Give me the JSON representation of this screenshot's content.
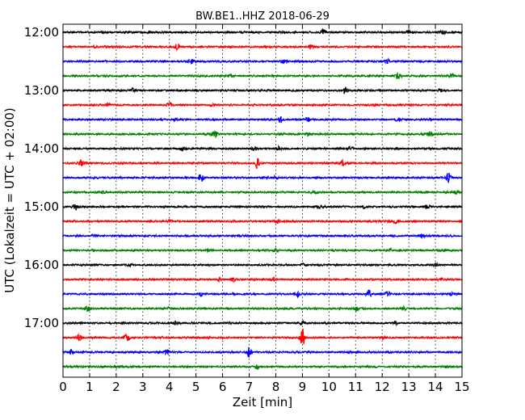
{
  "chart_data": {
    "type": "line",
    "title": "BW.BE1..HHZ 2018-06-29",
    "xlabel": "Zeit  [min]",
    "ylabel": "UTC (Lokalzeit = UTC + 02:00)",
    "xlim": [
      0,
      15
    ],
    "x_ticks": [
      "0",
      "1",
      "2",
      "3",
      "4",
      "5",
      "6",
      "7",
      "8",
      "9",
      "10",
      "11",
      "12",
      "13",
      "14",
      "15"
    ],
    "y_ticks": [
      "12:00",
      "13:00",
      "14:00",
      "15:00",
      "16:00",
      "17:00"
    ],
    "grid": "x-dotted",
    "trace_colors": [
      "#000000",
      "#ff0000",
      "#0000ff",
      "#008000"
    ],
    "series": [
      {
        "start": "12:00",
        "color": "#000000",
        "events": [
          [
            9.8,
            1.0
          ],
          [
            14.3,
            0.8
          ],
          [
            13.0,
            0.5
          ]
        ]
      },
      {
        "start": "12:15",
        "color": "#ff0000",
        "events": [
          [
            4.3,
            1.0
          ],
          [
            9.3,
            0.6
          ],
          [
            1.2,
            0.4
          ]
        ]
      },
      {
        "start": "12:30",
        "color": "#0000ff",
        "events": [
          [
            4.8,
            0.7
          ],
          [
            8.3,
            0.8
          ],
          [
            12.2,
            0.6
          ]
        ]
      },
      {
        "start": "12:45",
        "color": "#008000",
        "events": [
          [
            6.3,
            0.5
          ],
          [
            12.6,
            1.0
          ],
          [
            14.6,
            0.6
          ]
        ]
      },
      {
        "start": "13:00",
        "color": "#000000",
        "events": [
          [
            2.6,
            0.6
          ],
          [
            10.6,
            1.0
          ],
          [
            14.2,
            0.5
          ]
        ]
      },
      {
        "start": "13:15",
        "color": "#ff0000",
        "events": [
          [
            4.0,
            0.9
          ],
          [
            1.7,
            0.6
          ],
          [
            5.6,
            0.5
          ]
        ]
      },
      {
        "start": "13:30",
        "color": "#0000ff",
        "events": [
          [
            8.2,
            1.2
          ],
          [
            4.2,
            0.4
          ],
          [
            9.2,
            0.6
          ],
          [
            12.6,
            0.4
          ]
        ]
      },
      {
        "start": "13:45",
        "color": "#008000",
        "events": [
          [
            5.7,
            1.1
          ],
          [
            9.2,
            0.7
          ],
          [
            13.8,
            0.7
          ]
        ]
      },
      {
        "start": "14:00",
        "color": "#000000",
        "events": [
          [
            4.5,
            1.1
          ],
          [
            7.2,
            0.6
          ],
          [
            10.8,
            0.8
          ],
          [
            8.1,
            0.5
          ]
        ]
      },
      {
        "start": "14:15",
        "color": "#ff0000",
        "events": [
          [
            0.7,
            1.8
          ],
          [
            7.3,
            1.5
          ],
          [
            10.5,
            0.9
          ]
        ]
      },
      {
        "start": "14:30",
        "color": "#0000ff",
        "events": [
          [
            5.2,
            1.3
          ],
          [
            14.5,
            1.6
          ],
          [
            8.0,
            0.5
          ]
        ]
      },
      {
        "start": "14:45",
        "color": "#008000",
        "events": [
          [
            14.8,
            0.6
          ],
          [
            1.5,
            0.4
          ],
          [
            9.5,
            0.4
          ]
        ]
      },
      {
        "start": "15:00",
        "color": "#000000",
        "events": [
          [
            0.5,
            1.0
          ],
          [
            11.3,
            0.6
          ],
          [
            13.7,
            0.6
          ],
          [
            9.6,
            0.5
          ]
        ]
      },
      {
        "start": "15:15",
        "color": "#ff0000",
        "events": [
          [
            8.1,
            0.5
          ],
          [
            12.5,
            0.6
          ],
          [
            4.0,
            0.4
          ]
        ]
      },
      {
        "start": "15:30",
        "color": "#0000ff",
        "events": [
          [
            1.2,
            0.4
          ],
          [
            7.0,
            0.3
          ],
          [
            13.5,
            0.4
          ]
        ]
      },
      {
        "start": "15:45",
        "color": "#008000",
        "events": [
          [
            5.5,
            0.4
          ],
          [
            8.0,
            0.5
          ],
          [
            12.3,
            0.4
          ]
        ]
      },
      {
        "start": "16:00",
        "color": "#000000",
        "events": [
          [
            2.5,
            0.4
          ],
          [
            9.0,
            0.4
          ],
          [
            14.0,
            0.3
          ]
        ]
      },
      {
        "start": "16:15",
        "color": "#ff0000",
        "events": [
          [
            5.9,
            0.6
          ],
          [
            6.4,
            0.7
          ],
          [
            7.9,
            0.6
          ],
          [
            14.2,
            0.5
          ]
        ]
      },
      {
        "start": "16:30",
        "color": "#0000ff",
        "events": [
          [
            5.2,
            0.5
          ],
          [
            8.8,
            0.8
          ],
          [
            11.5,
            1.1
          ],
          [
            12.2,
            0.7
          ],
          [
            14.6,
            0.5
          ]
        ]
      },
      {
        "start": "16:45",
        "color": "#008000",
        "events": [
          [
            0.9,
            0.8
          ],
          [
            11.0,
            0.8
          ],
          [
            12.8,
            0.6
          ],
          [
            4.0,
            0.4
          ]
        ]
      },
      {
        "start": "17:00",
        "color": "#000000",
        "events": [
          [
            9.0,
            0.6
          ],
          [
            4.2,
            0.4
          ],
          [
            12.5,
            0.4
          ]
        ]
      },
      {
        "start": "17:15",
        "color": "#ff0000",
        "events": [
          [
            9.0,
            2.6
          ],
          [
            2.4,
            1.8
          ],
          [
            0.6,
            0.9
          ],
          [
            12.0,
            0.5
          ]
        ]
      },
      {
        "start": "17:30",
        "color": "#0000ff",
        "events": [
          [
            7.0,
            1.5
          ],
          [
            0.3,
            0.8
          ],
          [
            3.9,
            0.6
          ]
        ]
      },
      {
        "start": "17:45",
        "color": "#008000",
        "events": [
          [
            7.3,
            0.6
          ],
          [
            2.0,
            0.3
          ]
        ]
      }
    ]
  }
}
